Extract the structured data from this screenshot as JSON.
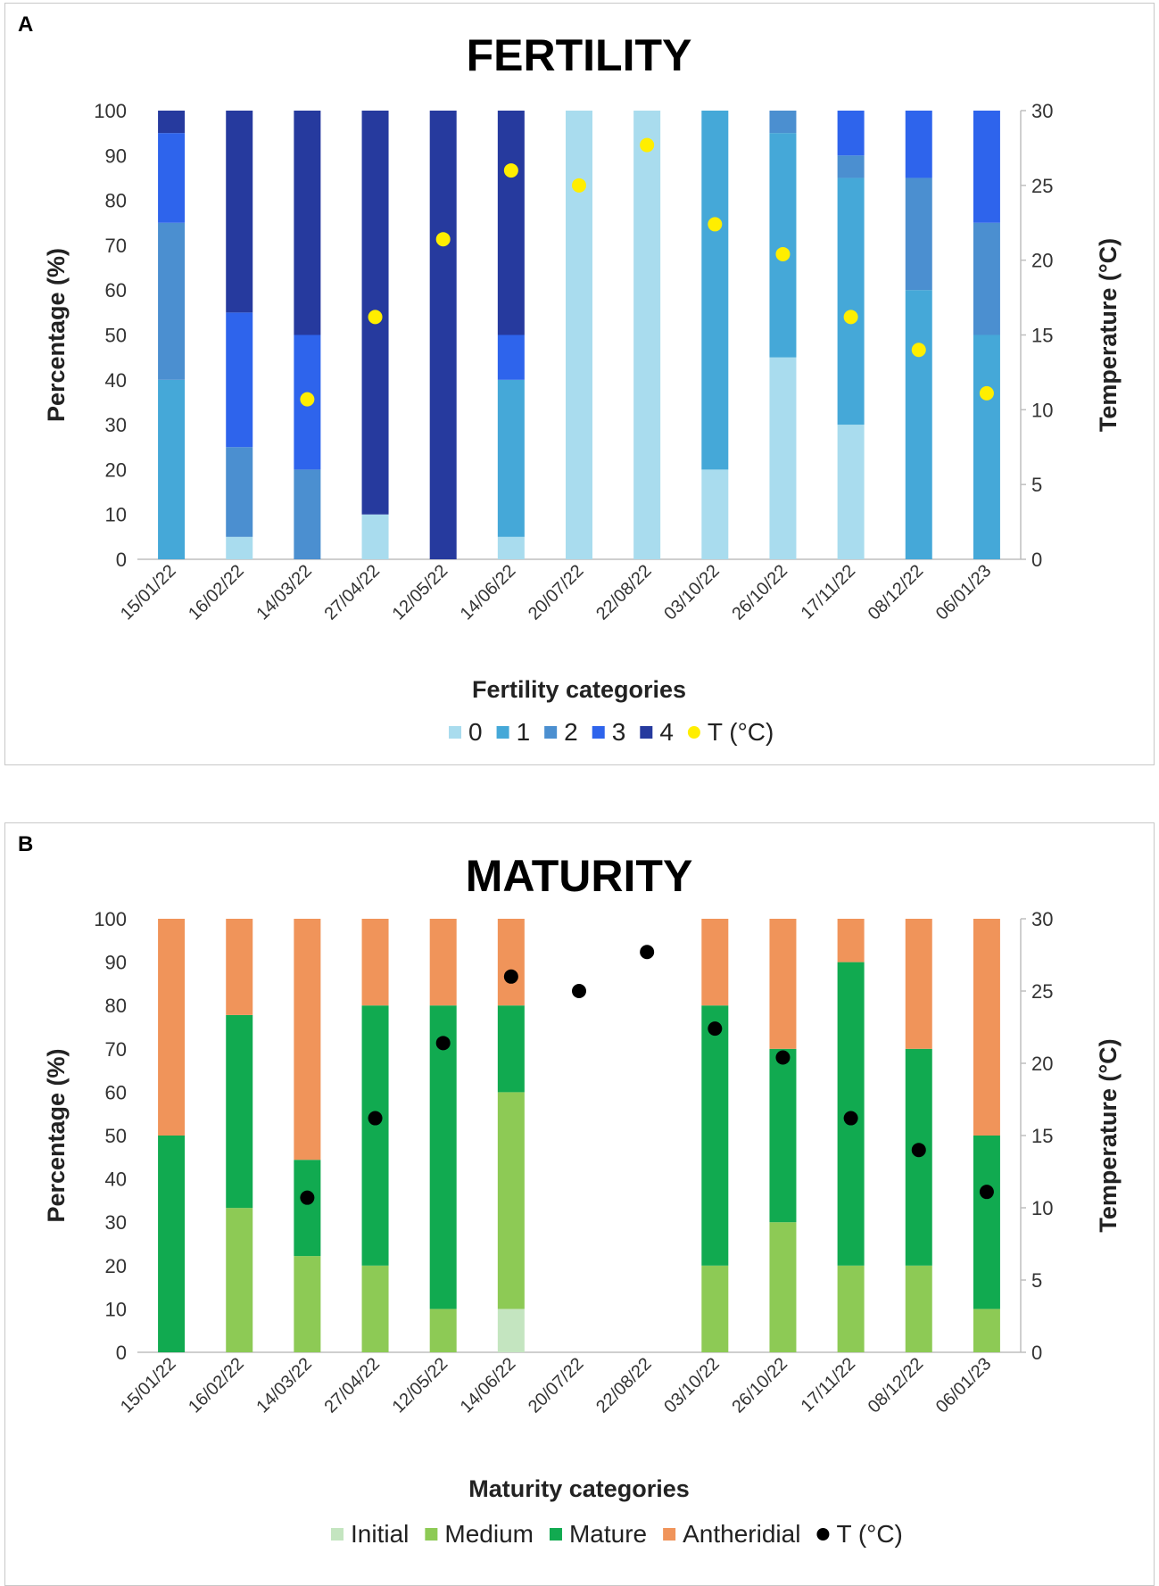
{
  "figure": {
    "panels": [
      {
        "label": "A"
      },
      {
        "label": "B"
      }
    ]
  },
  "chart_data": [
    {
      "type": "bar",
      "stacked": true,
      "title": "FERTILITY",
      "xlabel": "Fertility categories",
      "ylabel": "Percentage (%)",
      "y2label": "Temperature (°C)",
      "ylim": [
        0,
        100
      ],
      "y2lim": [
        0,
        30
      ],
      "yticks": [
        0,
        10,
        20,
        30,
        40,
        50,
        60,
        70,
        80,
        90,
        100
      ],
      "y2ticks": [
        0,
        5,
        10,
        15,
        20,
        25,
        30
      ],
      "categories": [
        "15/01/22",
        "16/02/22",
        "14/03/22",
        "27/04/22",
        "12/05/22",
        "14/06/22",
        "20/07/22",
        "22/08/22",
        "03/10/22",
        "26/10/22",
        "17/11/22",
        "08/12/22",
        "06/01/23"
      ],
      "series": [
        {
          "name": "0",
          "color": "#a9dcee",
          "values": [
            0,
            5,
            0,
            10,
            0,
            5,
            100,
            100,
            20,
            45,
            30,
            0,
            0
          ]
        },
        {
          "name": "1",
          "color": "#45a8d8",
          "values": [
            40,
            0,
            0,
            0,
            0,
            35,
            0,
            0,
            80,
            50,
            55,
            60,
            50
          ]
        },
        {
          "name": "2",
          "color": "#4b8fd0",
          "values": [
            35,
            20,
            20,
            0,
            0,
            0,
            0,
            0,
            0,
            5,
            5,
            25,
            25
          ]
        },
        {
          "name": "3",
          "color": "#2e64ec",
          "values": [
            20,
            30,
            30,
            0,
            0,
            10,
            0,
            0,
            0,
            0,
            10,
            15,
            25
          ]
        },
        {
          "name": "4",
          "color": "#263a9e",
          "values": [
            5,
            45,
            50,
            90,
            100,
            50,
            0,
            0,
            0,
            0,
            0,
            0,
            0
          ]
        }
      ],
      "temperature": {
        "name": "T (°C)",
        "color": "#ffee00",
        "values": [
          null,
          null,
          10.7,
          16.2,
          21.4,
          26,
          25,
          27.7,
          22.4,
          20.4,
          16.2,
          14,
          11.1
        ]
      },
      "legend": [
        "0",
        "1",
        "2",
        "3",
        "4",
        "T (°C)"
      ]
    },
    {
      "type": "bar",
      "stacked": true,
      "title": "MATURITY",
      "xlabel": "Maturity categories",
      "ylabel": "Percentage (%)",
      "y2label": "Temperature (°C)",
      "ylim": [
        0,
        100
      ],
      "y2lim": [
        0,
        30
      ],
      "yticks": [
        0,
        10,
        20,
        30,
        40,
        50,
        60,
        70,
        80,
        90,
        100
      ],
      "y2ticks": [
        0,
        5,
        10,
        15,
        20,
        25,
        30
      ],
      "categories": [
        "15/01/22",
        "16/02/22",
        "14/03/22",
        "27/04/22",
        "12/05/22",
        "14/06/22",
        "20/07/22",
        "22/08/22",
        "03/10/22",
        "26/10/22",
        "17/11/22",
        "08/12/22",
        "06/01/23"
      ],
      "series": [
        {
          "name": "Initial",
          "color": "#c4e5c0",
          "values": [
            0,
            0,
            0,
            0,
            0,
            10,
            0,
            0,
            0,
            0,
            0,
            0,
            0
          ]
        },
        {
          "name": "Medium",
          "color": "#8dca55",
          "values": [
            0,
            33.3,
            22.2,
            20,
            10,
            50,
            0,
            0,
            20,
            30,
            20,
            20,
            10
          ]
        },
        {
          "name": "Mature",
          "color": "#11aa50",
          "values": [
            50,
            44.5,
            22.2,
            60,
            70,
            20,
            0,
            0,
            60,
            40,
            70,
            50,
            40
          ]
        },
        {
          "name": "Antheridial",
          "color": "#f0945a",
          "values": [
            50,
            22.2,
            55.6,
            20,
            20,
            20,
            0,
            0,
            20,
            30,
            10,
            30,
            50
          ]
        }
      ],
      "temperature": {
        "name": "T (°C)",
        "color": "#000000",
        "values": [
          null,
          null,
          10.7,
          16.2,
          21.4,
          26,
          25,
          27.7,
          22.4,
          20.4,
          16.2,
          14,
          11.1
        ]
      },
      "legend": [
        "Initial",
        "Medium",
        "Mature",
        "Antheridial",
        "T (°C)"
      ]
    }
  ]
}
